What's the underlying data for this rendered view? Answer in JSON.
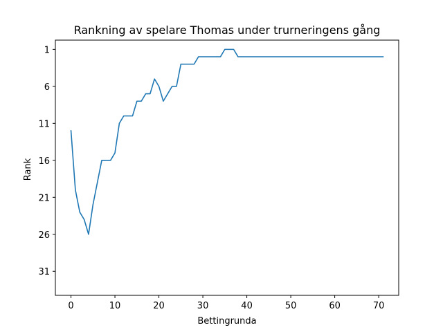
{
  "chart_data": {
    "type": "line",
    "title": "Rankning av spelare Thomas under trurneringens gång",
    "xlabel": "Bettingrunda",
    "ylabel": "Rank",
    "xlim": [
      -3.55,
      74.55
    ],
    "ylim": [
      34.25,
      -0.25
    ],
    "y_inverted": true,
    "grid": false,
    "x_ticks": [
      0,
      10,
      20,
      30,
      40,
      50,
      60,
      70
    ],
    "y_ticks": [
      1,
      6,
      11,
      16,
      21,
      26,
      31
    ],
    "series": [
      {
        "name": "",
        "color": "#1f77b4",
        "x": [
          0,
          1,
          2,
          3,
          4,
          5,
          6,
          7,
          8,
          9,
          10,
          11,
          12,
          13,
          14,
          15,
          16,
          17,
          18,
          19,
          20,
          21,
          22,
          23,
          24,
          25,
          26,
          27,
          28,
          29,
          30,
          31,
          32,
          33,
          34,
          35,
          36,
          37,
          38,
          39,
          40,
          41,
          42,
          43,
          44,
          45,
          46,
          47,
          48,
          49,
          50,
          51,
          52,
          53,
          54,
          55,
          56,
          57,
          58,
          59,
          60,
          61,
          62,
          63,
          64,
          65,
          66,
          67,
          68,
          69,
          70,
          71
        ],
        "y": [
          12,
          20,
          23,
          24,
          26,
          22,
          19,
          16,
          16,
          16,
          15,
          11,
          10,
          10,
          10,
          8,
          8,
          7,
          7,
          5,
          6,
          8,
          7,
          6,
          6,
          3,
          3,
          3,
          3,
          2,
          2,
          2,
          2,
          2,
          2,
          1,
          1,
          1,
          2,
          2,
          2,
          2,
          2,
          2,
          2,
          2,
          2,
          2,
          2,
          2,
          2,
          2,
          2,
          2,
          2,
          2,
          2,
          2,
          2,
          2,
          2,
          2,
          2,
          2,
          2,
          2,
          2,
          2,
          2,
          2,
          2,
          2
        ]
      }
    ]
  }
}
